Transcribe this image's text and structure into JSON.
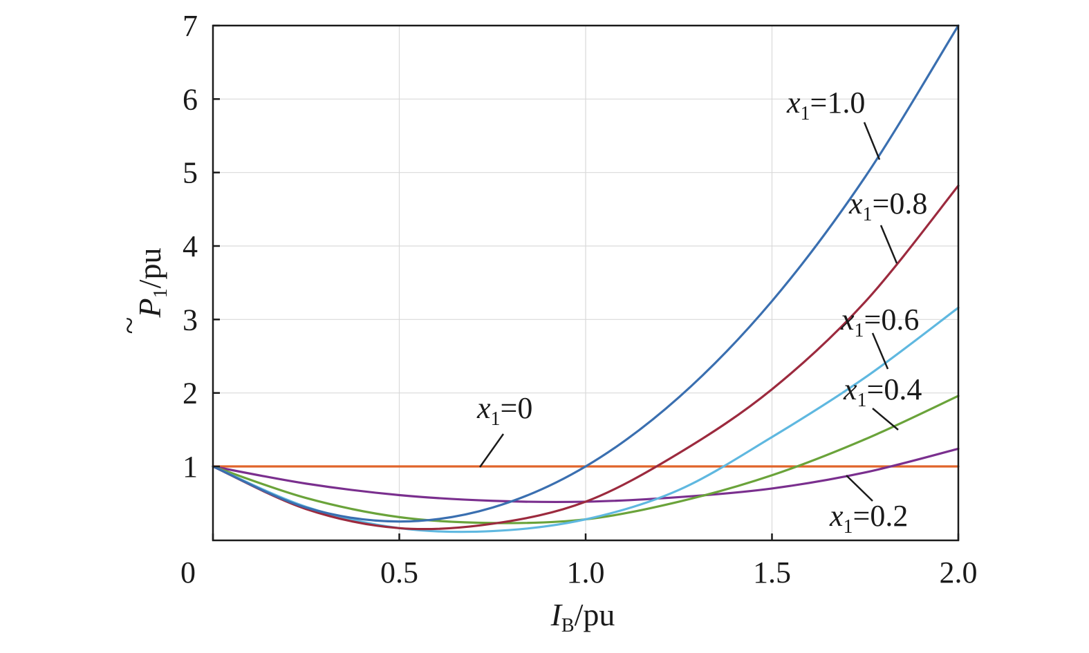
{
  "chart_data": {
    "type": "line",
    "xlabel_main": "I",
    "xlabel_sub": "B",
    "xlabel_unit": "/pu",
    "ylabel_main": "P",
    "ylabel_accent": "~",
    "ylabel_sub": "1",
    "ylabel_unit": "/pu",
    "xlim": [
      0,
      2.0
    ],
    "ylim": [
      0,
      7
    ],
    "y_visible_min": 0.0,
    "x_ticks": [
      0,
      0.5,
      1.0,
      1.5,
      2.0
    ],
    "x_tick_labels": [
      "0",
      "0.5",
      "1.0",
      "1.5",
      "2.0"
    ],
    "y_ticks": [
      1,
      2,
      3,
      4,
      5,
      6,
      7
    ],
    "y_tick_labels": [
      "1",
      "2",
      "3",
      "4",
      "5",
      "6",
      "7"
    ],
    "grid": true,
    "series": [
      {
        "name": "x1=0",
        "x1": 0,
        "color": "#e0642a",
        "x": [
          0,
          0.25,
          0.5,
          0.75,
          1.0,
          1.25,
          1.5,
          1.75,
          2.0
        ],
        "y": [
          1,
          1,
          1,
          1,
          1,
          1,
          1,
          1,
          1
        ]
      },
      {
        "name": "x1=0.2",
        "x1": 0.2,
        "color": "#7a2f8e",
        "x": [
          0,
          0.25,
          0.5,
          0.75,
          1.0,
          1.25,
          1.5,
          1.75,
          2.0
        ],
        "y": [
          1.0,
          0.766,
          0.61,
          0.532,
          0.52,
          0.582,
          0.7,
          0.918,
          1.24
        ]
      },
      {
        "name": "x1=0.4",
        "x1": 0.4,
        "color": "#6aa33a",
        "x": [
          0,
          0.25,
          0.5,
          0.75,
          1.0,
          1.25,
          1.5,
          1.75,
          2.0
        ],
        "y": [
          1.0,
          0.57,
          0.31,
          0.23,
          0.28,
          0.52,
          0.88,
          1.37,
          1.96
        ]
      },
      {
        "name": "x1=0.6",
        "x1": 0.6,
        "color": "#5fb8e0",
        "x": [
          0,
          0.25,
          0.5,
          0.75,
          1.0,
          1.25,
          1.5,
          1.75,
          2.0
        ],
        "y": [
          1.0,
          0.45,
          0.16,
          0.12,
          0.28,
          0.68,
          1.4,
          2.21,
          3.16
        ]
      },
      {
        "name": "x1=0.8",
        "x1": 0.8,
        "color": "#9c2a3e",
        "x": [
          0,
          0.25,
          0.5,
          0.75,
          1.0,
          1.25,
          1.5,
          1.75,
          2.0
        ],
        "y": [
          1.0,
          0.42,
          0.16,
          0.22,
          0.52,
          1.18,
          2.05,
          3.24,
          4.82
        ]
      },
      {
        "name": "x1=1.0",
        "x1": 1.0,
        "color": "#3a6fb0",
        "x": [
          0,
          0.25,
          0.5,
          0.75,
          1.0,
          1.25,
          1.5,
          1.75,
          2.0
        ],
        "y": [
          1.0,
          0.44,
          0.25,
          0.44,
          1.0,
          1.94,
          3.25,
          4.94,
          7.0
        ]
      }
    ],
    "annotations": [
      {
        "base": "x",
        "sub": "1",
        "rest": "=0",
        "series": "x1=0"
      },
      {
        "base": "x",
        "sub": "1",
        "rest": "=0.2",
        "series": "x1=0.2"
      },
      {
        "base": "x",
        "sub": "1",
        "rest": "=0.4",
        "series": "x1=0.4"
      },
      {
        "base": "x",
        "sub": "1",
        "rest": "=0.6",
        "series": "x1=0.6"
      },
      {
        "base": "x",
        "sub": "1",
        "rest": "=0.8",
        "series": "x1=0.8"
      },
      {
        "base": "x",
        "sub": "1",
        "rest": "=1.0",
        "series": "x1=1.0"
      }
    ]
  }
}
